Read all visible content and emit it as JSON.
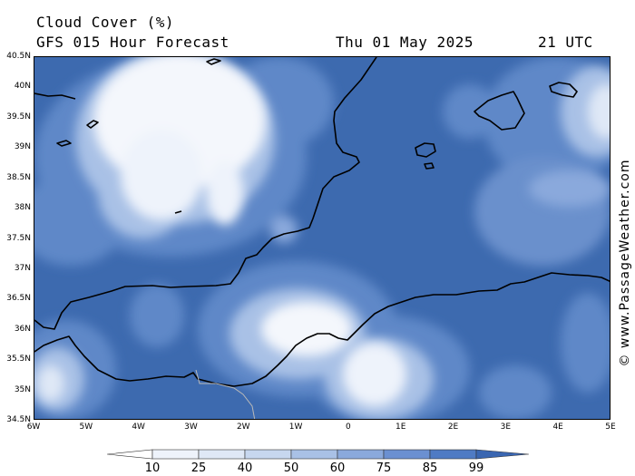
{
  "header": {
    "title": "Cloud Cover (%)",
    "subtitle": "GFS 015 Hour Forecast",
    "date": "Thu 01 May 2025",
    "time": "21 UTC"
  },
  "map": {
    "lat_labels": [
      "40.5N",
      "40N",
      "39.5N",
      "39N",
      "38.5N",
      "38N",
      "37.5N",
      "37N",
      "36.5N",
      "36N",
      "35.5N",
      "35N",
      "34.5N"
    ],
    "lon_labels": [
      "6W",
      "5W",
      "4W",
      "3W",
      "2W",
      "1W",
      "0",
      "1E",
      "2E",
      "3E",
      "4E",
      "5E"
    ],
    "lat_range": [
      34.5,
      40.5
    ],
    "lon_range": [
      -6,
      5
    ]
  },
  "legend": {
    "ticks": [
      "10",
      "25",
      "40",
      "50",
      "60",
      "75",
      "85",
      "99"
    ],
    "colors": [
      "#ffffff",
      "#eef3fb",
      "#dfe8f6",
      "#c7d7ef",
      "#a9c1e6",
      "#8aa9dc",
      "#6b90d1",
      "#4f7bc4",
      "#3a66b1"
    ]
  },
  "credit": "© www.PassageWeather.com"
}
